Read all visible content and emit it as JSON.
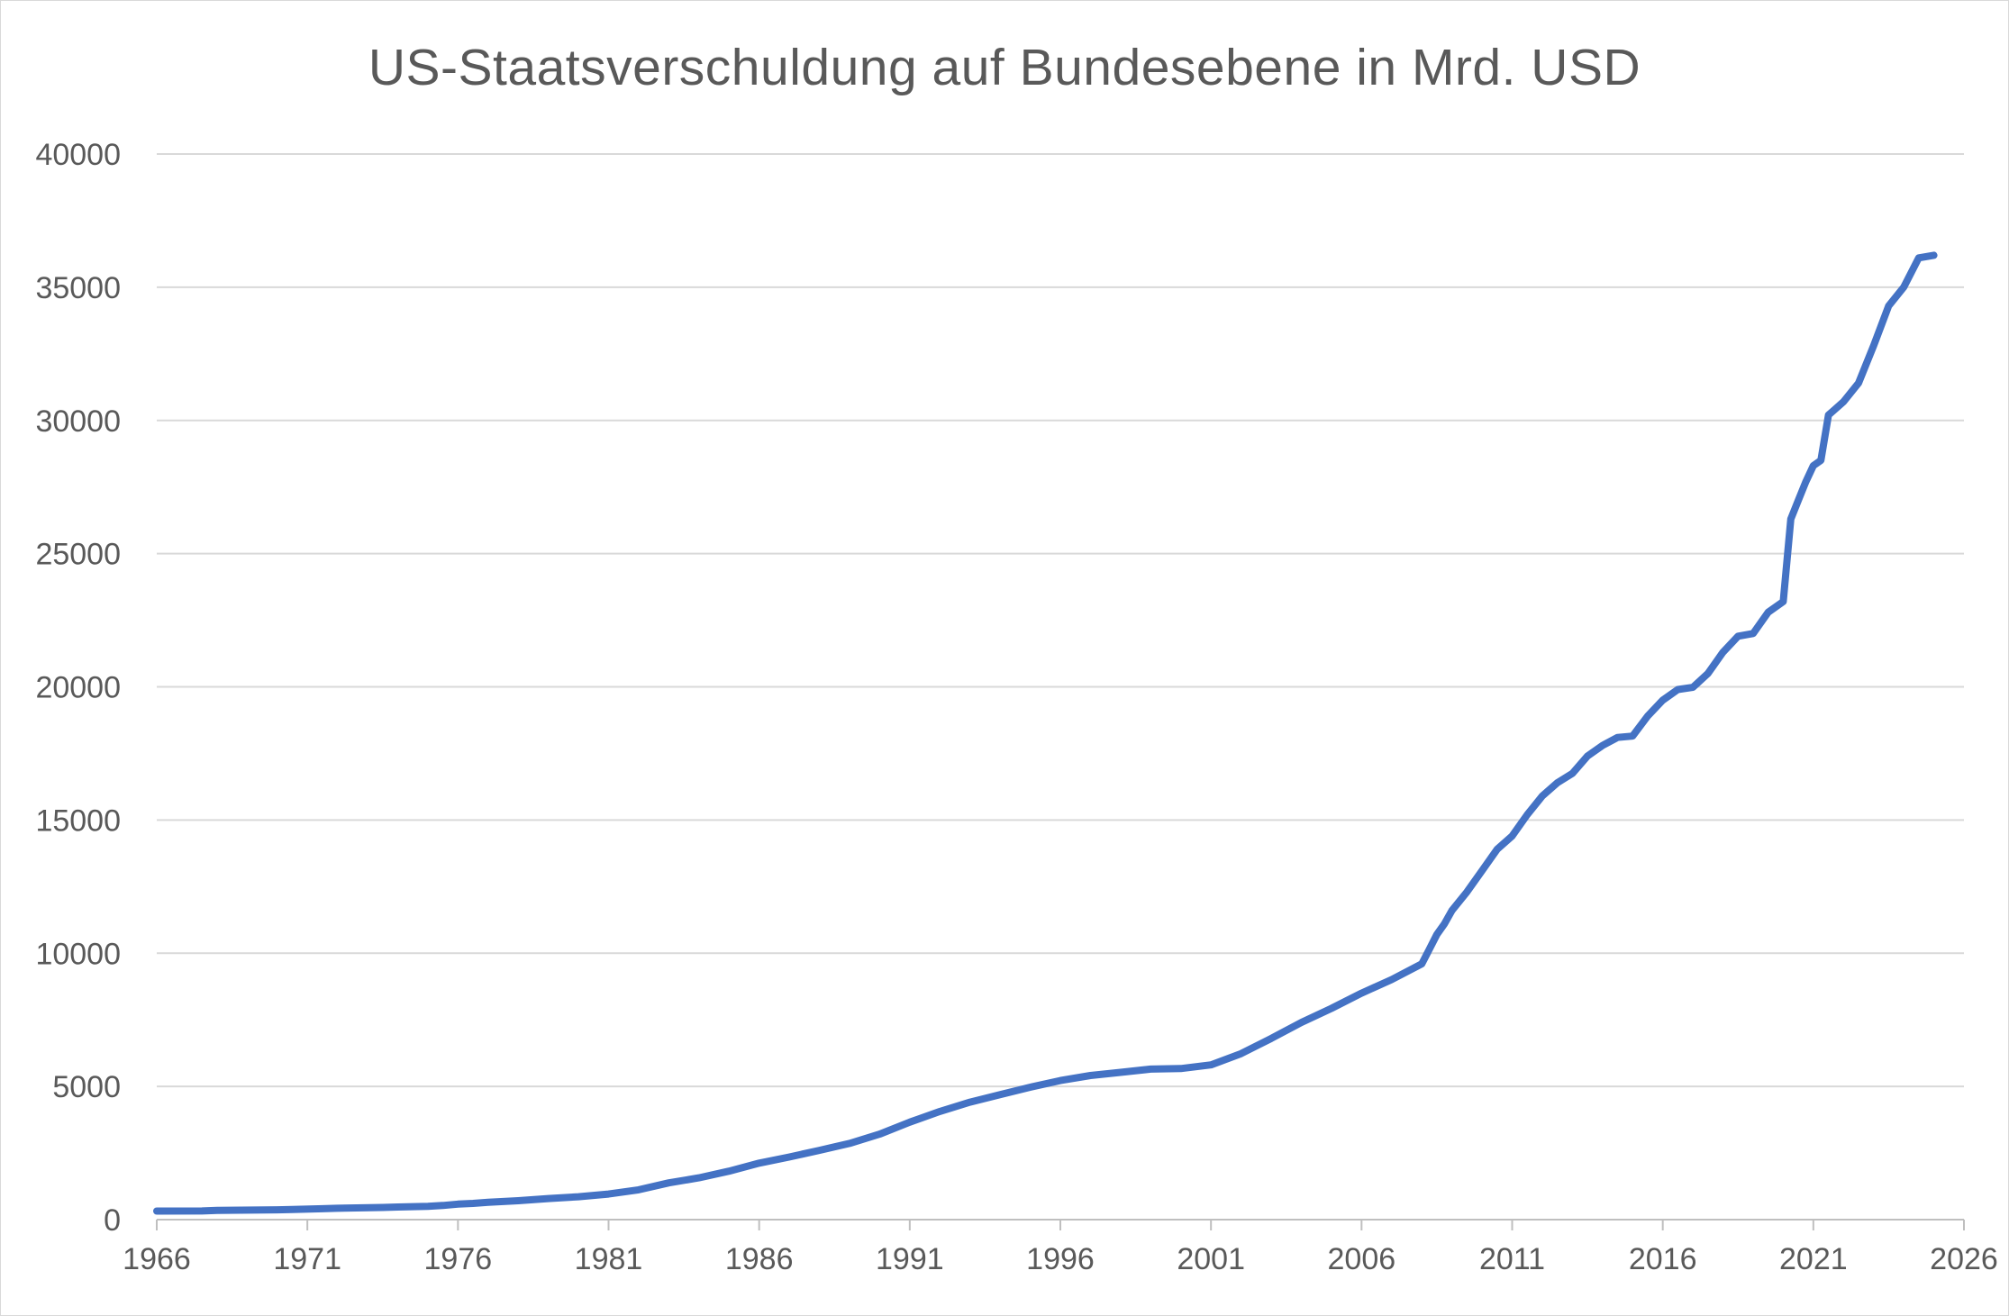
{
  "chart_data": {
    "type": "line",
    "title": "US-Staatsverschuldung auf Bundesebene in Mrd. USD",
    "xlabel": "",
    "ylabel": "",
    "xlim": [
      1966,
      2026
    ],
    "ylim": [
      0,
      40000
    ],
    "x_ticks": [
      "1966",
      "1971",
      "1976",
      "1981",
      "1986",
      "1991",
      "1996",
      "2001",
      "2006",
      "2011",
      "2016",
      "2021",
      "2026"
    ],
    "y_ticks": [
      "0",
      "5000",
      "10000",
      "15000",
      "20000",
      "25000",
      "30000",
      "35000",
      "40000"
    ],
    "grid": "horizontal",
    "legend": "none",
    "series": [
      {
        "color": "#4472c4",
        "x": [
          1966.0,
          1967.5,
          1968.0,
          1970.0,
          1970.5,
          1971.5,
          1972.0,
          1973.5,
          1974.0,
          1975.0,
          1975.5,
          1976.0,
          1976.5,
          1977.0,
          1977.5,
          1978.0,
          1979.0,
          1980.0,
          1981.0,
          1982.0,
          1983.0,
          1984.0,
          1985.0,
          1986.0,
          1987.0,
          1988.0,
          1989.0,
          1990.0,
          1991.0,
          1992.0,
          1993.0,
          1994.0,
          1995.0,
          1996.0,
          1997.0,
          1998.0,
          1999.0,
          2000.0,
          2001.0,
          2002.0,
          2003.0,
          2004.0,
          2005.0,
          2006.0,
          2007.0,
          2008.0,
          2008.25,
          2008.5,
          2008.75,
          2009.0,
          2009.5,
          2010.0,
          2010.5,
          2011.0,
          2011.5,
          2012.0,
          2012.5,
          2013.0,
          2013.5,
          2014.0,
          2014.5,
          2015.0,
          2015.5,
          2016.0,
          2016.5,
          2017.0,
          2017.5,
          2018.0,
          2018.5,
          2019.0,
          2019.5,
          2020.0,
          2020.25,
          2020.5,
          2020.75,
          2021.0,
          2021.25,
          2021.5,
          2022.0,
          2022.5,
          2023.0,
          2023.5,
          2024.0,
          2024.5,
          2025.0
        ],
        "y": [
          320,
          326,
          348,
          370,
          380,
          408,
          427,
          458,
          475,
          500,
          530,
          580,
          610,
          650,
          680,
          710,
          790,
          860,
          960,
          1120,
          1380,
          1570,
          1820,
          2120,
          2350,
          2600,
          2860,
          3210,
          3660,
          4060,
          4410,
          4690,
          4970,
          5220,
          5410,
          5530,
          5650,
          5670,
          5810,
          6230,
          6800,
          7400,
          7930,
          8500,
          9010,
          9600,
          10150,
          10700,
          11100,
          11600,
          12300,
          13100,
          13900,
          14400,
          15200,
          15900,
          16400,
          16750,
          17400,
          17800,
          18100,
          18150,
          18900,
          19500,
          19900,
          19980,
          20500,
          21300,
          21900,
          22000,
          22800,
          23200,
          26300,
          27000,
          27700,
          28300,
          28500,
          30200,
          30700,
          31400,
          32800,
          34300,
          35000,
          36100,
          36200
        ]
      }
    ]
  }
}
